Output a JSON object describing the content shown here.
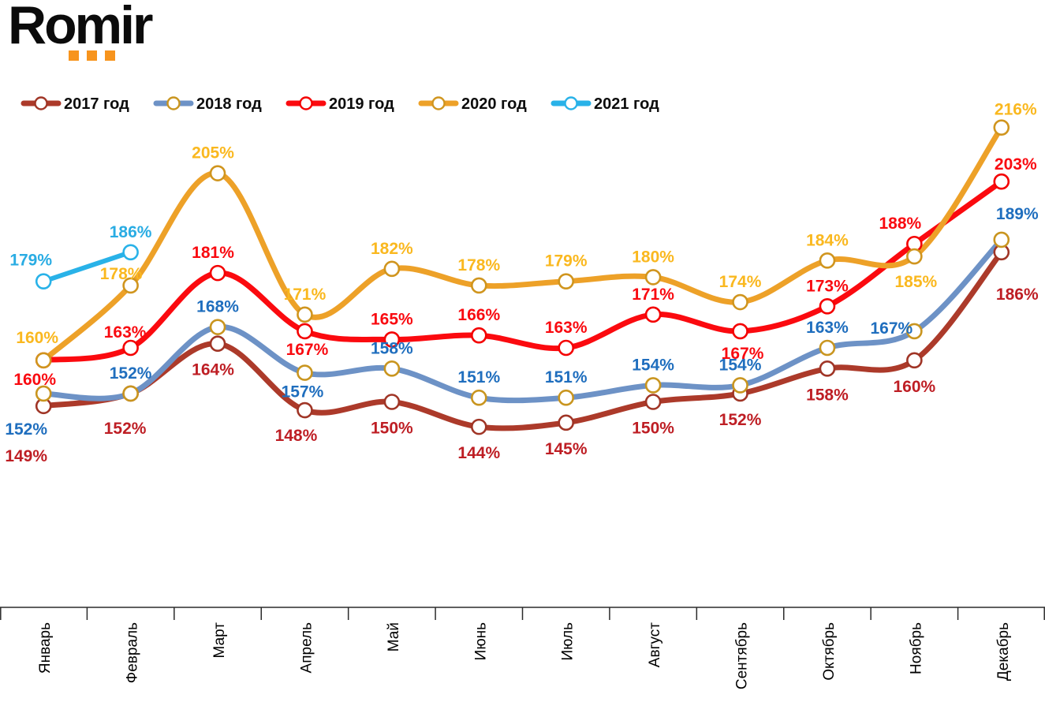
{
  "logo": {
    "text": "Romir",
    "accent_color": "#F7941D"
  },
  "chart_data": {
    "type": "line",
    "title": "",
    "unit": "%",
    "grid": false,
    "legend_position": "top-left",
    "categories": [
      "Январь",
      "Февраль",
      "Март",
      "Апрель",
      "Май",
      "Июнь",
      "Июль",
      "Август",
      "Сентябрь",
      "Октябрь",
      "Ноябрь",
      "Декабрь"
    ],
    "ylim": [
      100,
      225
    ],
    "x_axis": {
      "line_color": "#2b2b2b"
    },
    "series": [
      {
        "name": "2017 год",
        "line_color": "#AC3A2A",
        "label_color": "#BE1E24",
        "marker_ring_color": "#A03526",
        "values": [
          149,
          152,
          164,
          148,
          150,
          144,
          145,
          150,
          152,
          158,
          160,
          186
        ]
      },
      {
        "name": "2018 год",
        "line_color": "#6D92C6",
        "label_color": "#1F6EBE",
        "marker_ring_color": "#C9951F",
        "values": [
          152,
          152,
          168,
          157,
          158,
          151,
          151,
          154,
          154,
          163,
          167,
          189
        ]
      },
      {
        "name": "2019 год",
        "line_color": "#FB0A0F",
        "label_color": "#F90A10",
        "marker_ring_color": "#F40000",
        "values": [
          160,
          163,
          181,
          167,
          165,
          166,
          163,
          171,
          167,
          173,
          188,
          203
        ]
      },
      {
        "name": "2020 год",
        "line_color": "#EDA128",
        "label_color": "#FAB81F",
        "marker_ring_color": "#D0951E",
        "values": [
          160,
          178,
          205,
          171,
          182,
          178,
          179,
          180,
          174,
          184,
          185,
          216
        ]
      },
      {
        "name": "2021 год",
        "line_color": "#29B2E8",
        "label_color": "#29ACE3",
        "marker_ring_color": "#29B2E8",
        "values": [
          179,
          186
        ]
      }
    ]
  }
}
